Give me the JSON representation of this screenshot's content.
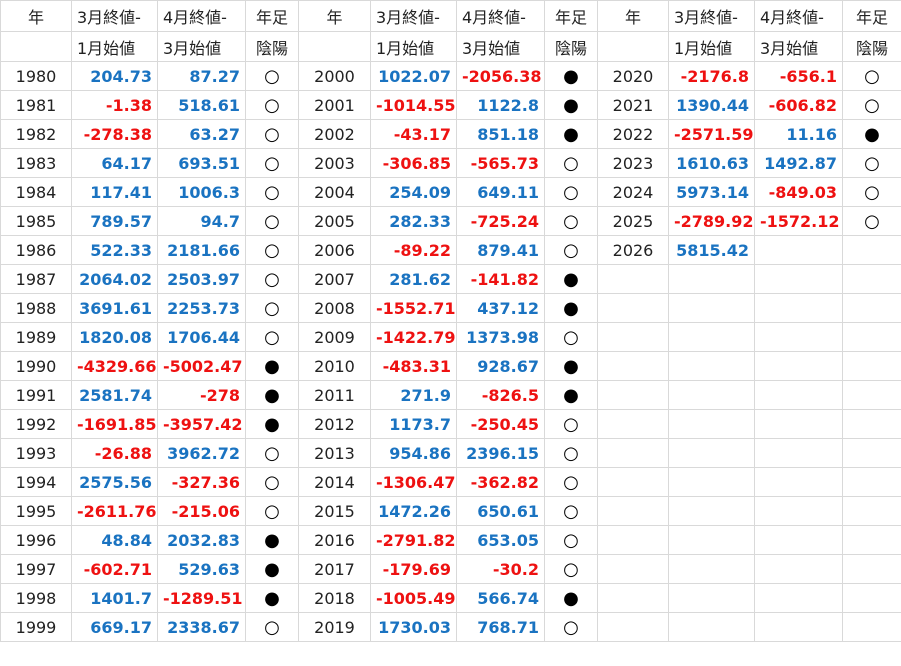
{
  "headers": {
    "year": "年",
    "col_a_line1": "3月終値-",
    "col_a_line2": "1月始値",
    "col_b_line1": "4月終値-",
    "col_b_line2": "3月始値",
    "col_c_line1": "年足",
    "col_c_line2": "陰陽"
  },
  "colors": {
    "positive": "#1a73c1",
    "negative": "#ee1111"
  },
  "symbols": {
    "yang": "○",
    "yin": "●"
  },
  "blocks": [
    [
      [
        "1980",
        "204.73",
        "87.27",
        "○"
      ],
      [
        "1981",
        "-1.38",
        "518.61",
        "○"
      ],
      [
        "1982",
        "-278.38",
        "63.27",
        "○"
      ],
      [
        "1983",
        "64.17",
        "693.51",
        "○"
      ],
      [
        "1984",
        "117.41",
        "1006.3",
        "○"
      ],
      [
        "1985",
        "789.57",
        "94.7",
        "○"
      ],
      [
        "1986",
        "522.33",
        "2181.66",
        "○"
      ],
      [
        "1987",
        "2064.02",
        "2503.97",
        "○"
      ],
      [
        "1988",
        "3691.61",
        "2253.73",
        "○"
      ],
      [
        "1989",
        "1820.08",
        "1706.44",
        "○"
      ],
      [
        "1990",
        "-4329.66",
        "-5002.47",
        "●"
      ],
      [
        "1991",
        "2581.74",
        "-278",
        "●"
      ],
      [
        "1992",
        "-1691.85",
        "-3957.42",
        "●"
      ],
      [
        "1993",
        "-26.88",
        "3962.72",
        "○"
      ],
      [
        "1994",
        "2575.56",
        "-327.36",
        "○"
      ],
      [
        "1995",
        "-2611.76",
        "-215.06",
        "○"
      ],
      [
        "1996",
        "48.84",
        "2032.83",
        "●"
      ],
      [
        "1997",
        "-602.71",
        "529.63",
        "●"
      ],
      [
        "1998",
        "1401.7",
        "-1289.51",
        "●"
      ],
      [
        "1999",
        "669.17",
        "2338.67",
        "○"
      ]
    ],
    [
      [
        "2000",
        "1022.07",
        "-2056.38",
        "●"
      ],
      [
        "2001",
        "-1014.55",
        "1122.8",
        "●"
      ],
      [
        "2002",
        "-43.17",
        "851.18",
        "●"
      ],
      [
        "2003",
        "-306.85",
        "-565.73",
        "○"
      ],
      [
        "2004",
        "254.09",
        "649.11",
        "○"
      ],
      [
        "2005",
        "282.33",
        "-725.24",
        "○"
      ],
      [
        "2006",
        "-89.22",
        "879.41",
        "○"
      ],
      [
        "2007",
        "281.62",
        "-141.82",
        "●"
      ],
      [
        "2008",
        "-1552.71",
        "437.12",
        "●"
      ],
      [
        "2009",
        "-1422.79",
        "1373.98",
        "○"
      ],
      [
        "2010",
        "-483.31",
        "928.67",
        "●"
      ],
      [
        "2011",
        "271.9",
        "-826.5",
        "●"
      ],
      [
        "2012",
        "1173.7",
        "-250.45",
        "○"
      ],
      [
        "2013",
        "954.86",
        "2396.15",
        "○"
      ],
      [
        "2014",
        "-1306.47",
        "-362.82",
        "○"
      ],
      [
        "2015",
        "1472.26",
        "650.61",
        "○"
      ],
      [
        "2016",
        "-2791.82",
        "653.05",
        "○"
      ],
      [
        "2017",
        "-179.69",
        "-30.2",
        "○"
      ],
      [
        "2018",
        "-1005.49",
        "566.74",
        "●"
      ],
      [
        "2019",
        "1730.03",
        "768.71",
        "○"
      ]
    ],
    [
      [
        "2020",
        "-2176.8",
        "-656.1",
        "○"
      ],
      [
        "2021",
        "1390.44",
        "-606.82",
        "○"
      ],
      [
        "2022",
        "-2571.59",
        "11.16",
        "●"
      ],
      [
        "2023",
        "1610.63",
        "1492.87",
        "○"
      ],
      [
        "2024",
        "5973.14",
        "-849.03",
        "○"
      ],
      [
        "2025",
        "-2789.92",
        "-1572.12",
        "○"
      ],
      [
        "2026",
        "5815.42",
        "",
        ""
      ]
    ]
  ]
}
